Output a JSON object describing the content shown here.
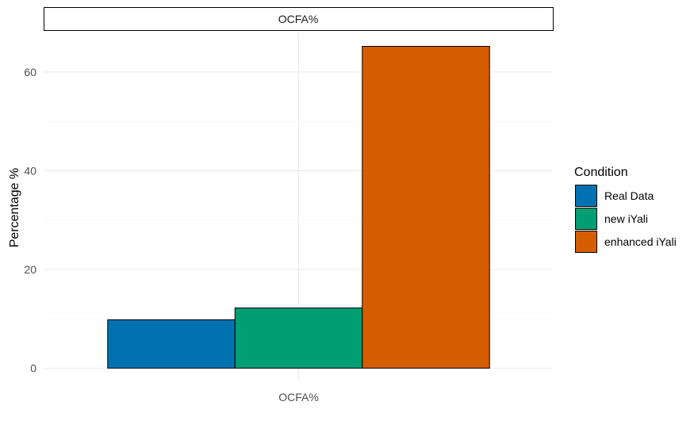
{
  "chart_data": {
    "type": "bar",
    "facet_title": "OCFA%",
    "categories": [
      "OCFA%"
    ],
    "series": [
      {
        "name": "Real Data",
        "values": [
          9.8
        ],
        "color": "#0072B2"
      },
      {
        "name": "new iYali",
        "values": [
          12.2
        ],
        "color": "#009E73"
      },
      {
        "name": "enhanced iYali",
        "values": [
          65.2
        ],
        "color": "#D55E00"
      }
    ],
    "xlabel": "",
    "ylabel": "Percentage %",
    "ylim": [
      0,
      68.5
    ],
    "yticks": [
      0,
      20,
      40,
      60
    ],
    "grid": true,
    "legend": {
      "title": "Condition",
      "position": "right"
    }
  }
}
